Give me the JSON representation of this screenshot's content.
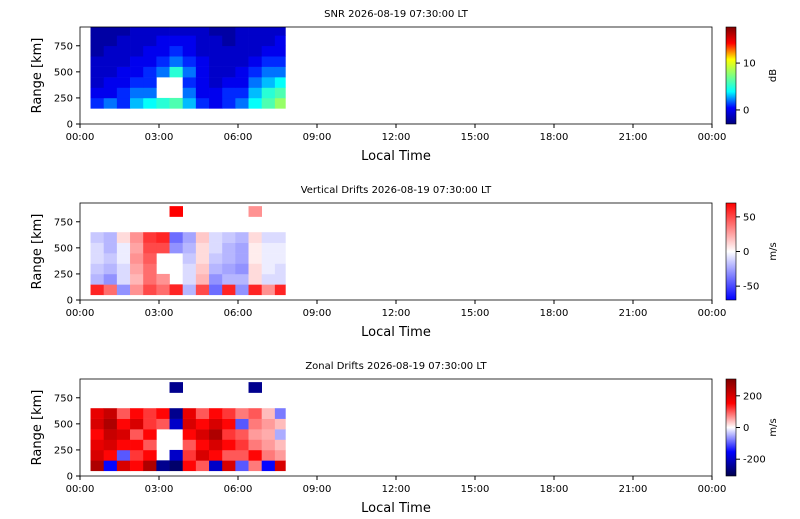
{
  "chart_data": [
    {
      "type": "heatmap",
      "title": "SNR 2026-08-19 07:30:00 LT",
      "xlabel": "Local Time",
      "ylabel": "Range [km]",
      "xlim": [
        0,
        24
      ],
      "ylim": [
        0,
        930
      ],
      "xticks": [
        {
          "value": 0,
          "label": "00:00"
        },
        {
          "value": 3,
          "label": "03:00"
        },
        {
          "value": 6,
          "label": "06:00"
        },
        {
          "value": 9,
          "label": "09:00"
        },
        {
          "value": 12,
          "label": "12:00"
        },
        {
          "value": 15,
          "label": "15:00"
        },
        {
          "value": 18,
          "label": "18:00"
        },
        {
          "value": 21,
          "label": "21:00"
        },
        {
          "value": 24,
          "label": "00:00"
        }
      ],
      "yticks": [
        0,
        250,
        500,
        750
      ],
      "x_edges": [
        0.4,
        0.9,
        1.4,
        1.9,
        2.4,
        2.9,
        3.4,
        3.9,
        4.4,
        4.9,
        5.4,
        5.9,
        6.4,
        6.9,
        7.4,
        7.8
      ],
      "y_edges": [
        150,
        250,
        350,
        450,
        550,
        650,
        750,
        850,
        930
      ],
      "values": [
        [
          1,
          2,
          1,
          3,
          4,
          5,
          6,
          3,
          1,
          0,
          1,
          2,
          4,
          6,
          8
        ],
        [
          0,
          0,
          1,
          2,
          2,
          null,
          null,
          2,
          0,
          0,
          1,
          1,
          3,
          5,
          6
        ],
        [
          -1,
          0,
          0,
          1,
          1,
          null,
          null,
          1,
          0,
          -1,
          0,
          0,
          2,
          3,
          4
        ],
        [
          -1,
          -1,
          0,
          0,
          1,
          2,
          5,
          2,
          0,
          -1,
          -1,
          0,
          1,
          2,
          2
        ],
        [
          -1,
          -1,
          -1,
          0,
          0,
          1,
          2,
          1,
          0,
          -1,
          -1,
          -1,
          0,
          1,
          1
        ],
        [
          -2,
          -1,
          -1,
          -1,
          0,
          0,
          1,
          0,
          -1,
          -1,
          -1,
          -1,
          -1,
          0,
          0
        ],
        [
          -2,
          -2,
          -1,
          -1,
          -1,
          0,
          0,
          0,
          -1,
          -1,
          -2,
          -1,
          -1,
          -1,
          0
        ],
        [
          -2,
          -2,
          -2,
          -1,
          -1,
          -1,
          -1,
          -1,
          -1,
          -2,
          -2,
          -1,
          -1,
          -1,
          -1
        ]
      ],
      "clim": [
        -3,
        17.7
      ],
      "cticks": [
        0,
        10
      ],
      "clabel": "dB",
      "colormap": [
        "#00007f",
        "#0000ff",
        "#00ffff",
        "#7fff7f",
        "#ffff00",
        "#ff0000",
        "#7f0000"
      ]
    },
    {
      "type": "heatmap",
      "title": "Vertical Drifts 2026-08-19 07:30:00 LT",
      "xlabel": "Local Time",
      "ylabel": "Range [km]",
      "xlim": [
        0,
        24
      ],
      "ylim": [
        0,
        930
      ],
      "xticks": [
        {
          "value": 0,
          "label": "00:00"
        },
        {
          "value": 3,
          "label": "03:00"
        },
        {
          "value": 6,
          "label": "06:00"
        },
        {
          "value": 9,
          "label": "09:00"
        },
        {
          "value": 12,
          "label": "12:00"
        },
        {
          "value": 15,
          "label": "15:00"
        },
        {
          "value": 18,
          "label": "18:00"
        },
        {
          "value": 21,
          "label": "21:00"
        },
        {
          "value": 24,
          "label": "00:00"
        }
      ],
      "yticks": [
        0,
        250,
        500,
        750
      ],
      "x_edges": [
        0.4,
        0.9,
        1.4,
        1.9,
        2.4,
        2.9,
        3.4,
        3.9,
        4.4,
        4.9,
        5.4,
        5.9,
        6.4,
        6.9,
        7.4,
        7.8
      ],
      "y_edges": [
        50,
        150,
        250,
        350,
        450,
        550,
        650,
        800,
        900
      ],
      "values": [
        [
          60,
          40,
          -30,
          30,
          50,
          40,
          60,
          -20,
          50,
          -40,
          60,
          -30,
          60,
          30,
          60
        ],
        [
          -20,
          -30,
          -10,
          20,
          40,
          30,
          null,
          -10,
          20,
          -30,
          -20,
          -20,
          10,
          -10,
          -10
        ],
        [
          -15,
          -20,
          -10,
          25,
          40,
          null,
          null,
          -10,
          15,
          -20,
          -25,
          -30,
          10,
          -5,
          -10
        ],
        [
          -10,
          -15,
          -5,
          30,
          45,
          null,
          null,
          -15,
          10,
          -15,
          -20,
          -25,
          5,
          -5,
          -5
        ],
        [
          -10,
          -20,
          -5,
          25,
          50,
          50,
          -30,
          -20,
          10,
          -10,
          -20,
          -25,
          5,
          -5,
          -5
        ],
        [
          -15,
          -20,
          10,
          30,
          55,
          60,
          -40,
          -25,
          15,
          -10,
          -15,
          -20,
          10,
          -10,
          -10
        ],
        [
          null,
          null,
          null,
          null,
          null,
          null,
          null,
          null,
          null,
          null,
          null,
          null,
          null,
          null,
          null
        ],
        [
          null,
          null,
          null,
          null,
          null,
          null,
          70,
          null,
          null,
          null,
          null,
          null,
          30,
          null,
          null
        ]
      ],
      "clim": [
        -70,
        70
      ],
      "cticks": [
        -50,
        0,
        50
      ],
      "clabel": "m/s",
      "colormap": [
        "#0000ff",
        "#ffffff",
        "#ff0000"
      ]
    },
    {
      "type": "heatmap",
      "title": "Zonal Drifts 2026-08-19 07:30:00 LT",
      "xlabel": "Local Time",
      "ylabel": "Range [km]",
      "xlim": [
        0,
        24
      ],
      "ylim": [
        0,
        930
      ],
      "xticks": [
        {
          "value": 0,
          "label": "00:00"
        },
        {
          "value": 3,
          "label": "03:00"
        },
        {
          "value": 6,
          "label": "06:00"
        },
        {
          "value": 9,
          "label": "09:00"
        },
        {
          "value": 12,
          "label": "12:00"
        },
        {
          "value": 15,
          "label": "15:00"
        },
        {
          "value": 18,
          "label": "18:00"
        },
        {
          "value": 21,
          "label": "21:00"
        },
        {
          "value": 24,
          "label": "00:00"
        }
      ],
      "yticks": [
        0,
        250,
        500,
        750
      ],
      "x_edges": [
        0.4,
        0.9,
        1.4,
        1.9,
        2.4,
        2.9,
        3.4,
        3.9,
        4.4,
        4.9,
        5.4,
        5.9,
        6.4,
        6.9,
        7.4,
        7.8
      ],
      "y_edges": [
        50,
        150,
        250,
        350,
        450,
        550,
        650,
        800,
        900
      ],
      "values": [
        [
          250,
          -150,
          200,
          150,
          250,
          -250,
          -280,
          150,
          100,
          -200,
          200,
          -100,
          80,
          -150,
          200
        ],
        [
          200,
          150,
          -100,
          120,
          150,
          null,
          -200,
          120,
          200,
          150,
          100,
          100,
          150,
          80,
          60
        ],
        [
          180,
          200,
          150,
          150,
          100,
          null,
          null,
          100,
          150,
          200,
          150,
          120,
          80,
          60,
          40
        ],
        [
          150,
          220,
          200,
          100,
          150,
          null,
          null,
          150,
          200,
          250,
          120,
          100,
          60,
          50,
          -50
        ],
        [
          200,
          250,
          150,
          200,
          120,
          100,
          -200,
          200,
          150,
          200,
          150,
          -100,
          80,
          60,
          40
        ],
        [
          180,
          220,
          100,
          150,
          120,
          150,
          -250,
          180,
          100,
          150,
          120,
          80,
          100,
          40,
          -80
        ],
        [
          null,
          null,
          null,
          null,
          null,
          null,
          null,
          null,
          null,
          null,
          null,
          null,
          null,
          null,
          null
        ],
        [
          null,
          null,
          null,
          null,
          null,
          null,
          -250,
          null,
          null,
          null,
          null,
          null,
          -250,
          null,
          null
        ]
      ],
      "clim": [
        -306,
        306
      ],
      "cticks": [
        -200,
        0,
        200
      ],
      "clabel": "m/s",
      "colormap": [
        "#00004c",
        "#0000ff",
        "#ffffff",
        "#ff0000",
        "#7f0000"
      ]
    }
  ]
}
